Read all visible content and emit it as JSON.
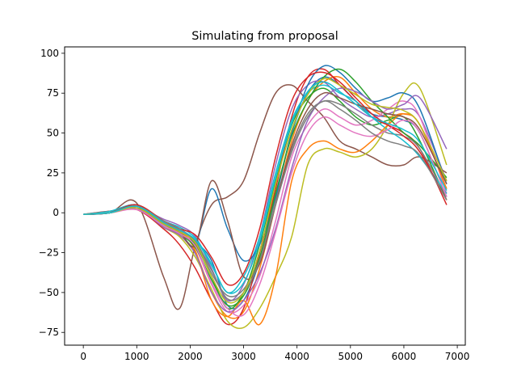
{
  "chart_data": {
    "type": "line",
    "title": "Simulating from proposal",
    "xlabel": "",
    "ylabel": "",
    "xlim": [
      -350,
      7150
    ],
    "ylim": [
      -83,
      104
    ],
    "xticks": [
      0,
      1000,
      2000,
      3000,
      4000,
      5000,
      6000,
      7000
    ],
    "yticks": [
      -75,
      -50,
      -25,
      0,
      25,
      50,
      75,
      100
    ],
    "grid": false,
    "palette": [
      "#1f77b4",
      "#ff7f0e",
      "#2ca02c",
      "#d62728",
      "#9467bd",
      "#8c564b",
      "#e377c2",
      "#7f7f7f",
      "#bcbd22",
      "#17becf"
    ],
    "x": [
      0,
      500,
      1000,
      1500,
      1800,
      2100,
      2400,
      2700,
      3000,
      3300,
      3600,
      3900,
      4200,
      4500,
      4800,
      5100,
      5400,
      5700,
      6000,
      6300,
      6800
    ],
    "series": [
      {
        "values": [
          -1,
          0,
          5,
          -6,
          -10,
          -18,
          -30,
          -58,
          -55,
          -30,
          10,
          50,
          75,
          85,
          80,
          70,
          62,
          60,
          58,
          50,
          10
        ]
      },
      {
        "values": [
          -1,
          1,
          3,
          -8,
          -14,
          -25,
          -50,
          -65,
          -62,
          -35,
          5,
          45,
          70,
          82,
          85,
          75,
          65,
          60,
          62,
          55,
          15
        ]
      },
      {
        "values": [
          -1,
          0,
          4,
          -5,
          -12,
          -20,
          -40,
          -60,
          -50,
          -20,
          20,
          55,
          72,
          78,
          70,
          60,
          55,
          58,
          60,
          45,
          8
        ]
      },
      {
        "values": [
          -1,
          1,
          2,
          -10,
          -20,
          -35,
          -55,
          -70,
          -60,
          -25,
          15,
          60,
          85,
          90,
          80,
          70,
          60,
          55,
          50,
          40,
          5
        ]
      },
      {
        "values": [
          -1,
          0,
          3,
          -4,
          -8,
          -15,
          -35,
          -55,
          -45,
          -15,
          30,
          65,
          80,
          82,
          72,
          65,
          60,
          62,
          65,
          60,
          20
        ]
      },
      {
        "values": [
          -1,
          0,
          6,
          -40,
          -60,
          -20,
          5,
          10,
          20,
          50,
          75,
          80,
          70,
          60,
          45,
          40,
          35,
          30,
          30,
          35,
          25
        ]
      },
      {
        "values": [
          -1,
          0,
          2,
          -6,
          -10,
          -22,
          -45,
          -62,
          -58,
          -40,
          -5,
          35,
          55,
          65,
          60,
          55,
          58,
          65,
          70,
          60,
          12
        ]
      },
      {
        "values": [
          -1,
          0,
          4,
          -7,
          -12,
          -18,
          -38,
          -52,
          -48,
          -28,
          8,
          40,
          62,
          70,
          68,
          62,
          55,
          50,
          48,
          40,
          10
        ]
      },
      {
        "values": [
          -1,
          0,
          3,
          -9,
          -15,
          -28,
          -48,
          -68,
          -72,
          -60,
          -40,
          -15,
          30,
          40,
          38,
          35,
          40,
          55,
          75,
          78,
          30
        ]
      },
      {
        "values": [
          -1,
          1,
          5,
          -5,
          -9,
          -16,
          -32,
          -50,
          -40,
          -15,
          25,
          58,
          75,
          80,
          75,
          70,
          60,
          52,
          45,
          35,
          12
        ]
      },
      {
        "values": [
          -1,
          0,
          3,
          -8,
          -12,
          -20,
          15,
          -10,
          -30,
          -20,
          10,
          50,
          80,
          92,
          88,
          78,
          70,
          72,
          75,
          65,
          18
        ]
      },
      {
        "values": [
          -1,
          0,
          4,
          -6,
          -11,
          -24,
          -55,
          -65,
          -55,
          -70,
          -40,
          20,
          40,
          45,
          40,
          38,
          45,
          55,
          62,
          55,
          15
        ]
      },
      {
        "values": [
          -1,
          0,
          3,
          -7,
          -13,
          -22,
          -42,
          -58,
          -52,
          -28,
          12,
          48,
          70,
          85,
          90,
          82,
          70,
          60,
          50,
          42,
          22
        ]
      },
      {
        "values": [
          -1,
          0,
          5,
          -5,
          -10,
          -14,
          -28,
          -45,
          -38,
          -10,
          35,
          70,
          85,
          88,
          82,
          72,
          62,
          55,
          48,
          38,
          8
        ]
      },
      {
        "values": [
          -1,
          0,
          3,
          -9,
          -14,
          -26,
          -50,
          -62,
          -55,
          -38,
          -10,
          28,
          58,
          72,
          78,
          76,
          70,
          65,
          68,
          72,
          40
        ]
      },
      {
        "values": [
          -1,
          0,
          4,
          -6,
          -12,
          -20,
          20,
          -5,
          -40,
          -32,
          5,
          42,
          65,
          75,
          72,
          68,
          65,
          62,
          60,
          52,
          18
        ]
      },
      {
        "values": [
          -1,
          0,
          2,
          -8,
          -13,
          -21,
          -44,
          -60,
          -64,
          -45,
          -12,
          25,
          50,
          60,
          55,
          50,
          48,
          52,
          58,
          50,
          10
        ]
      },
      {
        "values": [
          -1,
          0,
          4,
          -5,
          -10,
          -18,
          -36,
          -54,
          -50,
          -30,
          5,
          38,
          60,
          70,
          65,
          58,
          50,
          45,
          42,
          36,
          8
        ]
      },
      {
        "values": [
          -1,
          0,
          3,
          -7,
          -12,
          -19,
          -40,
          -56,
          -50,
          -24,
          18,
          52,
          74,
          84,
          80,
          74,
          68,
          66,
          64,
          55,
          20
        ]
      },
      {
        "values": [
          -1,
          0,
          4,
          -6,
          -11,
          -17,
          -33,
          -50,
          -44,
          -18,
          22,
          56,
          76,
          82,
          76,
          68,
          60,
          56,
          52,
          44,
          14
        ]
      }
    ]
  }
}
